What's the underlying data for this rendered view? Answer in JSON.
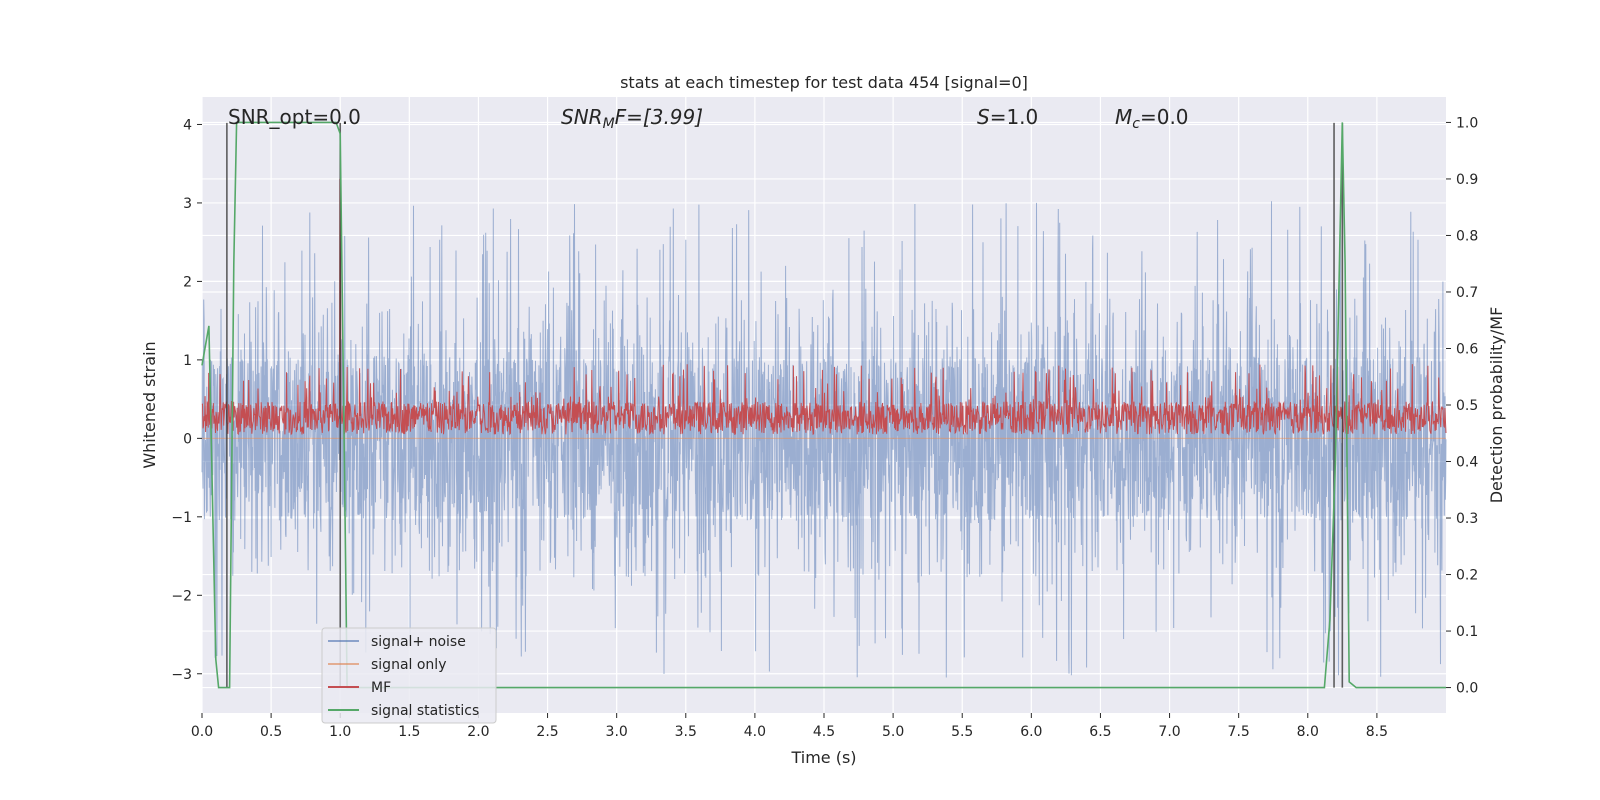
{
  "chart_data": {
    "type": "line",
    "title": "stats at each timestep for test data 454 [signal=0]",
    "xlabel": "Time (s)",
    "ylabel": "Whitened strain",
    "ylabel_right": "Detection probability/MF",
    "xlim": [
      0.0,
      9.0
    ],
    "ylim": [
      -3.5,
      4.35
    ],
    "ylim_right": [
      -0.045,
      1.045
    ],
    "x_ticks": [
      0.0,
      0.5,
      1.0,
      1.5,
      2.0,
      2.5,
      3.0,
      3.5,
      4.0,
      4.5,
      5.0,
      5.5,
      6.0,
      6.5,
      7.0,
      7.5,
      8.0,
      8.5
    ],
    "x_tick_labels": [
      "0.0",
      "0.5",
      "1.0",
      "1.5",
      "2.0",
      "2.5",
      "3.0",
      "3.5",
      "4.0",
      "4.5",
      "5.0",
      "5.5",
      "6.0",
      "6.5",
      "7.0",
      "7.5",
      "8.0",
      "8.5"
    ],
    "y_ticks": [
      -3,
      -2,
      -1,
      0,
      1,
      2,
      3,
      4
    ],
    "y_tick_labels": [
      "−3",
      "−2",
      "−1",
      "0",
      "1",
      "2",
      "3",
      "4"
    ],
    "y_right_ticks": [
      0.0,
      0.1,
      0.2,
      0.3,
      0.4,
      0.5,
      0.6,
      0.7,
      0.8,
      0.9,
      1.0
    ],
    "y_right_tick_labels": [
      "0.0",
      "0.1",
      "0.2",
      "0.3",
      "0.4",
      "0.5",
      "0.6",
      "0.7",
      "0.8",
      "0.9",
      "1.0"
    ],
    "grid": true,
    "legend_position": "lower-left",
    "annotations": {
      "snr_opt": "SNR_opt=0.0",
      "snr_mf_main": "SNR",
      "snr_mf_sub": "M",
      "snr_mf_tail": "F=[3.99]",
      "s_main": "S",
      "s_tail": "=1.0",
      "mc_main": "M",
      "mc_sub": "c",
      "mc_tail": "=0.0"
    },
    "series": [
      {
        "name": "signal+ noise",
        "color": "#4c72b0",
        "amplitude_core": 1.05,
        "spike_max": 3.05
      },
      {
        "name": "signal only",
        "color": "#dd8452",
        "values_constant": 0.0
      },
      {
        "name": "MF",
        "color": "#c44e52",
        "baseline": 0.05,
        "spike_max": 0.95,
        "spike_time": 1.0,
        "spike_value": 3.3
      },
      {
        "name": "signal statistics",
        "color": "#55a868",
        "x": [
          0.0,
          0.05,
          0.1,
          0.12,
          0.15,
          0.2,
          0.23,
          0.25,
          0.3,
          0.5,
          0.8,
          0.97,
          1.0,
          1.03,
          1.05,
          1.1,
          1.5,
          3.0,
          5.0,
          7.0,
          8.0,
          8.12,
          8.16,
          8.2,
          8.25,
          8.27,
          8.3,
          8.35,
          8.4,
          9.0
        ],
        "y": [
          0.57,
          0.64,
          0.05,
          0.0,
          0.0,
          0.0,
          0.75,
          1.0,
          1.0,
          1.0,
          1.0,
          1.0,
          0.98,
          0.4,
          0.0,
          0.0,
          0.0,
          0.0,
          0.0,
          0.0,
          0.0,
          0.0,
          0.12,
          0.4,
          1.0,
          0.75,
          0.01,
          0.0,
          0.0,
          0.0
        ]
      }
    ],
    "vlines": [
      0.18,
      1.0,
      8.19,
      8.25
    ]
  }
}
